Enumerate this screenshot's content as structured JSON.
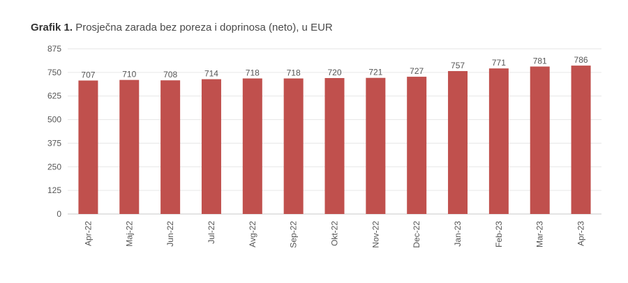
{
  "chart_data": {
    "type": "bar",
    "title_prefix": "Grafik 1.",
    "title": "Prosječna zarada bez poreza i doprinosa (neto), u EUR",
    "categories": [
      "Apr-22",
      "Maj-22",
      "Jun-22",
      "Jul-22",
      "Avg-22",
      "Sep-22",
      "Okt-22",
      "Nov-22",
      "Dec-22",
      "Jan-23",
      "Feb-23",
      "Mar-23",
      "Apr-23"
    ],
    "values": [
      707,
      710,
      708,
      714,
      718,
      718,
      720,
      721,
      727,
      757,
      771,
      781,
      786
    ],
    "data_labels": [
      "707",
      "710",
      "708",
      "714",
      "718",
      "718",
      "720",
      "721",
      "727",
      "757",
      "771",
      "781",
      "786"
    ],
    "yticks": [
      0,
      125,
      250,
      375,
      500,
      625,
      750,
      875
    ],
    "ylim": [
      0,
      875
    ],
    "xlabel": "",
    "ylabel": "",
    "grid": true,
    "legend": "none",
    "bar_color": "#c0504d",
    "grid_color": "#e6e6e6"
  }
}
